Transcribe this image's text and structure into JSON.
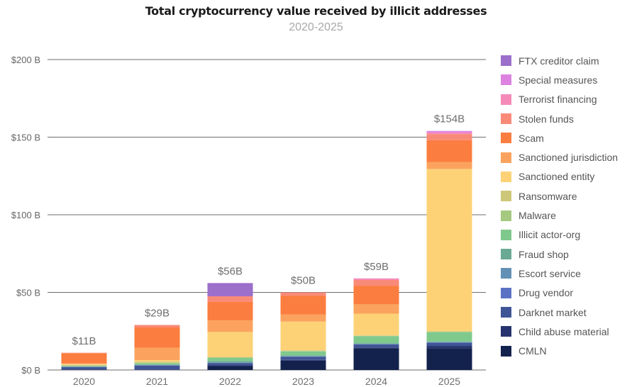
{
  "chart_data": {
    "type": "bar",
    "stacked": true,
    "title": "Total cryptocurrency value received by illicit addresses",
    "subtitle": "2020-2025",
    "xlabel": "",
    "ylabel": "",
    "ylim": [
      0,
      200
    ],
    "yticks": [
      0,
      50,
      100,
      150,
      200
    ],
    "ytick_labels": [
      "$0 B",
      "$50 B",
      "$100 B",
      "$150 B",
      "$200 B"
    ],
    "grid": true,
    "legend_position": "right",
    "categories": [
      "2020",
      "2021",
      "2022",
      "2023",
      "2024",
      "2025"
    ],
    "totals": [
      11,
      29,
      56,
      50,
      59,
      154
    ],
    "total_labels": [
      "$11B",
      "$29B",
      "$56B",
      "$50B",
      "$59B",
      "$154B"
    ],
    "series": [
      {
        "name": "CMLN",
        "color": "#13214d",
        "values": [
          0,
          0,
          2.5,
          6,
          14,
          14
        ]
      },
      {
        "name": "Child abuse material",
        "color": "#26336e",
        "values": [
          0.3,
          0.3,
          0.5,
          0.5,
          0.5,
          1.5
        ]
      },
      {
        "name": "Darknet market",
        "color": "#3f5595",
        "values": [
          1.5,
          2.5,
          1.5,
          2,
          2,
          2
        ]
      },
      {
        "name": "Drug vendor",
        "color": "#5a72c4",
        "values": [
          0.2,
          0.3,
          0.2,
          0.2,
          0.2,
          0.3
        ]
      },
      {
        "name": "Escort service",
        "color": "#6391b5",
        "values": [
          0.1,
          0.1,
          0.1,
          0.1,
          0.1,
          0.1
        ]
      },
      {
        "name": "Fraud shop",
        "color": "#6aa994",
        "values": [
          0.2,
          0.3,
          1,
          0.7,
          0.5,
          0.5
        ]
      },
      {
        "name": "Illicit actor-org",
        "color": "#7fc98d",
        "values": [
          0.3,
          0.7,
          2,
          2.5,
          4.5,
          6
        ]
      },
      {
        "name": "Malware",
        "color": "#a5c97f",
        "values": [
          0.3,
          0.5,
          0.2,
          0.2,
          0.2,
          0.2
        ]
      },
      {
        "name": "Ransomware",
        "color": "#cdc77a",
        "values": [
          0.4,
          0.7,
          0.5,
          0.5,
          0.3,
          0.3
        ]
      },
      {
        "name": "Sanctioned entity",
        "color": "#fdd277",
        "values": [
          0.5,
          1,
          16,
          18.5,
          14,
          104.6
        ]
      },
      {
        "name": "Sanctioned jurisdiction",
        "color": "#fba35e",
        "values": [
          0.5,
          8,
          7.5,
          4.5,
          6,
          4.5
        ]
      },
      {
        "name": "Scam",
        "color": "#fb7d3f",
        "values": [
          6.5,
          13,
          12,
          12,
          12,
          14
        ]
      },
      {
        "name": "Stolen funds",
        "color": "#f98a78",
        "values": [
          0.3,
          1.6,
          3.5,
          2.3,
          3.7,
          4
        ]
      },
      {
        "name": "Terrorist financing",
        "color": "#f58ab8",
        "values": [
          0,
          0,
          0,
          0,
          1,
          1
        ],
        "_note": "small slivers"
      },
      {
        "name": "Special measures",
        "color": "#dd82e1",
        "values": [
          0,
          0,
          0,
          0,
          0,
          1
        ]
      },
      {
        "name": "FTX creditor claim",
        "color": "#9b6fca",
        "values": [
          0,
          0,
          8.5,
          0,
          0,
          0
        ]
      }
    ]
  },
  "legend": {
    "items": [
      {
        "label": "FTX creditor claim",
        "color": "#9b6fca"
      },
      {
        "label": "Special measures",
        "color": "#dd82e1"
      },
      {
        "label": "Terrorist financing",
        "color": "#f58ab8"
      },
      {
        "label": "Stolen funds",
        "color": "#f98a78"
      },
      {
        "label": "Scam",
        "color": "#fb7d3f"
      },
      {
        "label": "Sanctioned jurisdiction",
        "color": "#fba35e"
      },
      {
        "label": "Sanctioned entity",
        "color": "#fdd277"
      },
      {
        "label": "Ransomware",
        "color": "#cdc77a"
      },
      {
        "label": "Malware",
        "color": "#a5c97f"
      },
      {
        "label": "Illicit actor-org",
        "color": "#7fc98d"
      },
      {
        "label": "Fraud shop",
        "color": "#6aa994"
      },
      {
        "label": "Escort service",
        "color": "#6391b5"
      },
      {
        "label": "Drug vendor",
        "color": "#5a72c4"
      },
      {
        "label": "Darknet market",
        "color": "#3f5595"
      },
      {
        "label": "Child abuse material",
        "color": "#26336e"
      },
      {
        "label": "CMLN",
        "color": "#13214d"
      }
    ]
  }
}
